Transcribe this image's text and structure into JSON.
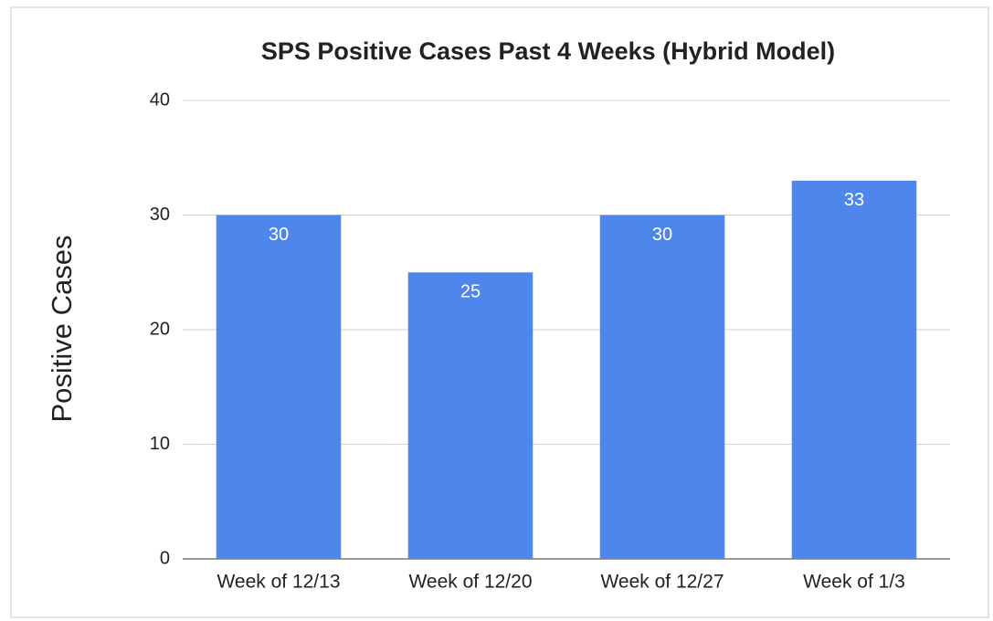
{
  "chart_data": {
    "type": "bar",
    "title": "SPS Positive Cases Past 4 Weeks (Hybrid Model)",
    "y_label": "Positive Cases",
    "categories": [
      "Week of 12/13",
      "Week of 12/20",
      "Week of 12/27",
      "Week of 1/3"
    ],
    "values": [
      30,
      25,
      30,
      33
    ],
    "color": "#4f86ec",
    "ylim": [
      0,
      40
    ],
    "yticks": [
      0,
      10,
      20,
      30,
      40
    ],
    "grid": true
  }
}
